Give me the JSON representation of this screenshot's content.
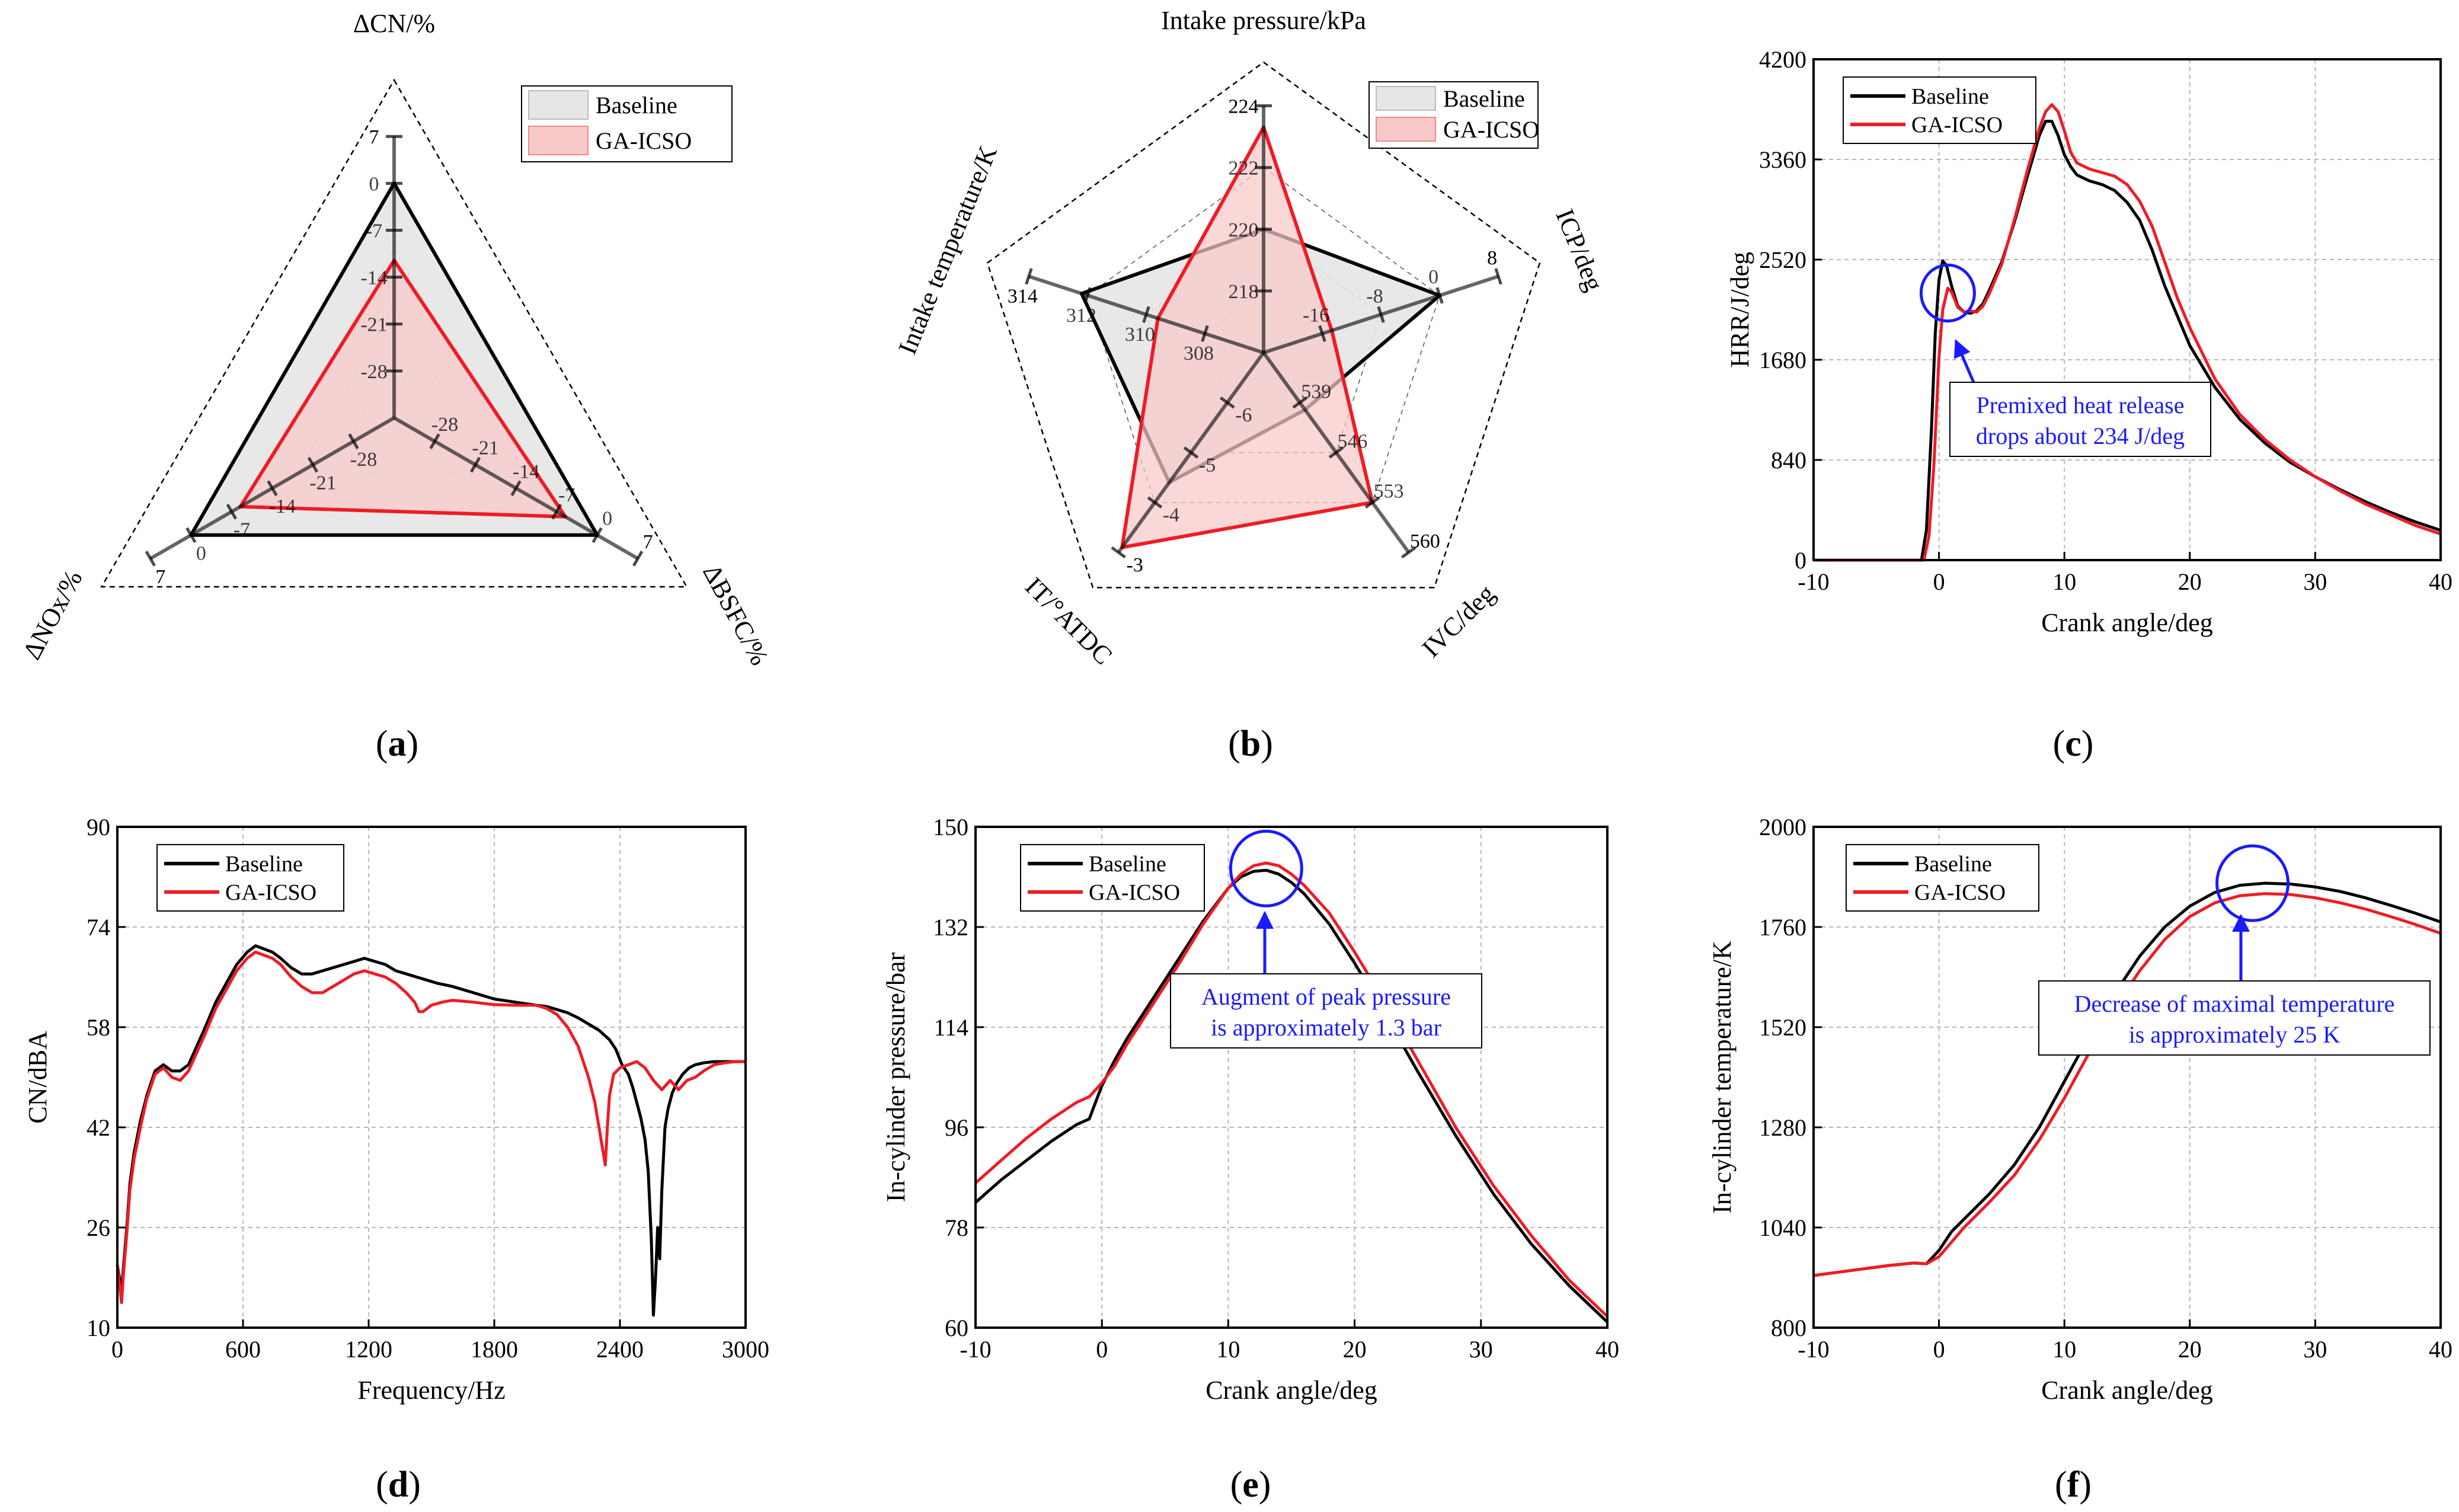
{
  "colors": {
    "baseline": "#000000",
    "ga": "#ee1c25",
    "annot": "#1a1aff",
    "radar_base_fill": "#e6e6e6",
    "radar_ga_fill": "#f8c9c9"
  },
  "panels": {
    "a": {
      "label": "(a)",
      "letter": "a"
    },
    "b": {
      "label": "(b)",
      "letter": "b"
    },
    "c": {
      "label": "(c)",
      "letter": "c"
    },
    "d": {
      "label": "(d)",
      "letter": "d"
    },
    "e": {
      "label": "(e)",
      "letter": "e"
    },
    "f": {
      "label": "(f)",
      "letter": "f"
    }
  },
  "chart_data": [
    {
      "id": "a",
      "type": "radar",
      "legend": [
        "Baseline",
        "GA-ICSO"
      ],
      "axes": [
        {
          "name": "ΔCN/%",
          "min": -35,
          "max": 7,
          "ticks": [
            "7",
            "0",
            "-7",
            "-14",
            "-21",
            "-28"
          ],
          "tick_values": [
            7,
            0,
            -7,
            -14,
            -21,
            -28
          ]
        },
        {
          "name": "ΔBSFC/%",
          "min": -35,
          "max": 7,
          "ticks": [
            "7",
            "0",
            "-7",
            "-14",
            "-21",
            "-28"
          ],
          "tick_values": [
            7,
            0,
            -7,
            -14,
            -21,
            -28
          ]
        },
        {
          "name": "ΔNOx/%",
          "min": -35,
          "max": 7,
          "ticks": [
            "7",
            "0",
            "-7",
            "-14",
            "-21",
            "-28"
          ],
          "tick_values": [
            7,
            0,
            -7,
            -14,
            -21,
            -28
          ]
        }
      ],
      "series": [
        {
          "name": "Baseline",
          "values": [
            0,
            0,
            0
          ]
        },
        {
          "name": "GA-ICSO",
          "values": [
            -11.5,
            -5.5,
            -8.5
          ]
        }
      ]
    },
    {
      "id": "b",
      "type": "radar",
      "legend": [
        "Baseline",
        "GA-ICSO"
      ],
      "axes": [
        {
          "name": "Intake pressure/kPa",
          "min": 216,
          "max": 224,
          "ticks": [
            "224",
            "222",
            "220",
            "218"
          ],
          "tick_values": [
            224,
            222,
            220,
            218
          ]
        },
        {
          "name": "ICP/deg",
          "min": -24,
          "max": 8,
          "ticks": [
            "8",
            "0",
            "-8",
            "-16"
          ],
          "tick_values": [
            8,
            0,
            -8,
            -16
          ]
        },
        {
          "name": "IVC/deg",
          "min": 532,
          "max": 560,
          "ticks": [
            "560",
            "553",
            "546",
            "539"
          ],
          "tick_values": [
            560,
            553,
            546,
            539
          ]
        },
        {
          "name": "IT/°ATDC",
          "min": -7,
          "max": -3,
          "ticks": [
            "-3",
            "-4",
            "-5",
            "-6"
          ],
          "tick_values": [
            -3,
            -4,
            -5,
            -6
          ]
        },
        {
          "name": "Intake temperature/K",
          "min": 306,
          "max": 314,
          "ticks": [
            "314",
            "312",
            "310",
            "308"
          ],
          "tick_values": [
            314,
            312,
            310,
            308
          ]
        }
      ],
      "series": [
        {
          "name": "Baseline",
          "values": [
            220.0,
            0.0,
            540.0,
            -4.4,
            312.2
          ]
        },
        {
          "name": "GA-ICSO",
          "values": [
            223.3,
            -14.7,
            553.0,
            -3.1,
            309.6
          ]
        }
      ]
    },
    {
      "id": "c",
      "type": "line",
      "xlabel": "Crank angle/deg",
      "ylabel": "HRR/J/deg",
      "xlim": [
        -10,
        40
      ],
      "ylim": [
        0,
        4200
      ],
      "xticks": [
        -10,
        0,
        10,
        20,
        30,
        40
      ],
      "yticks": [
        0,
        840,
        1680,
        2520,
        3360,
        4200
      ],
      "legend": [
        "Baseline",
        "GA-ICSO"
      ],
      "annotation": {
        "lines": [
          "Premixed heat release",
          "drops about 234 J/deg"
        ],
        "circle_at": [
          0.7,
          2240
        ]
      },
      "series": [
        {
          "name": "Baseline",
          "x": [
            -10,
            -2,
            -1.4,
            -1,
            -0.6,
            -0.3,
            0,
            0.3,
            0.6,
            1,
            1.5,
            2,
            2.5,
            3,
            3.5,
            4,
            5,
            6,
            7,
            8,
            8.5,
            9,
            9.5,
            10,
            10.5,
            11,
            12,
            13,
            14,
            15,
            16,
            17,
            18,
            19,
            20,
            22,
            24,
            26,
            28,
            30,
            32,
            34,
            36,
            38,
            40
          ],
          "y": [
            0,
            0,
            0,
            250,
            1100,
            1900,
            2350,
            2510,
            2470,
            2300,
            2130,
            2080,
            2070,
            2090,
            2150,
            2260,
            2500,
            2830,
            3200,
            3560,
            3680,
            3680,
            3560,
            3400,
            3300,
            3230,
            3180,
            3150,
            3100,
            3000,
            2850,
            2600,
            2300,
            2050,
            1800,
            1450,
            1180,
            980,
            820,
            700,
            590,
            490,
            400,
            320,
            250
          ]
        },
        {
          "name": "GA-ICSO",
          "x": [
            -10,
            -1.2,
            -0.8,
            -0.4,
            0,
            0.3,
            0.7,
            1,
            1.5,
            2,
            2.5,
            3,
            3.5,
            4,
            5,
            6,
            7,
            8,
            8.5,
            9,
            9.5,
            10,
            10.5,
            11,
            12,
            13,
            14,
            15,
            16,
            17,
            18,
            19,
            20,
            22,
            24,
            26,
            28,
            30,
            32,
            34,
            36,
            38,
            40
          ],
          "y": [
            0,
            0,
            200,
            800,
            1700,
            2100,
            2280,
            2250,
            2120,
            2080,
            2090,
            2080,
            2130,
            2230,
            2480,
            2850,
            3250,
            3620,
            3760,
            3820,
            3760,
            3600,
            3420,
            3330,
            3280,
            3250,
            3220,
            3150,
            3010,
            2800,
            2500,
            2200,
            1950,
            1520,
            1220,
            1010,
            840,
            700,
            580,
            470,
            380,
            290,
            220
          ]
        }
      ]
    },
    {
      "id": "d",
      "type": "line",
      "xlabel": "Frequency/Hz",
      "ylabel": "CN/dBA",
      "xlim": [
        0,
        3000
      ],
      "ylim": [
        10,
        90
      ],
      "xticks": [
        0,
        600,
        1200,
        1800,
        2400,
        3000
      ],
      "yticks": [
        10,
        26,
        42,
        58,
        74,
        90
      ],
      "legend": [
        "Baseline",
        "GA-ICSO"
      ],
      "series": [
        {
          "name": "Baseline",
          "x": [
            0,
            10,
            20,
            30,
            45,
            60,
            80,
            110,
            140,
            180,
            220,
            260,
            300,
            340,
            380,
            420,
            470,
            520,
            570,
            620,
            660,
            700,
            740,
            780,
            830,
            880,
            930,
            980,
            1030,
            1080,
            1130,
            1180,
            1230,
            1280,
            1330,
            1380,
            1430,
            1480,
            1530,
            1600,
            1700,
            1800,
            1900,
            2000,
            2050,
            2100,
            2150,
            2200,
            2250,
            2300,
            2350,
            2380,
            2410,
            2440,
            2460,
            2480,
            2500,
            2520,
            2535,
            2550,
            2560,
            2570,
            2580,
            2590,
            2600,
            2615,
            2630,
            2650,
            2670,
            2700,
            2730,
            2760,
            2800,
            2850,
            2900,
            2950,
            3000
          ],
          "y": [
            20,
            18,
            16,
            20,
            26,
            33,
            38,
            43,
            47,
            51,
            52,
            51,
            51,
            52,
            55,
            58,
            62,
            65,
            68,
            70,
            71,
            70.5,
            70,
            69,
            67.5,
            66.5,
            66.5,
            67,
            67.5,
            68,
            68.5,
            69,
            68.5,
            68,
            67,
            66.5,
            66,
            65.5,
            65,
            64.5,
            63.5,
            62.5,
            62,
            61.5,
            61.3,
            60.8,
            60.3,
            59.5,
            58.5,
            57.5,
            56,
            54.5,
            52,
            50.5,
            48.5,
            46,
            43.5,
            40,
            35,
            24,
            12,
            18,
            26,
            21,
            32,
            42,
            45,
            47.5,
            49,
            50.5,
            51.5,
            52,
            52.3,
            52.5,
            52.5,
            52.5,
            52.5
          ]
        },
        {
          "name": "GA-ICSO",
          "x": [
            0,
            10,
            20,
            30,
            45,
            60,
            80,
            110,
            140,
            180,
            220,
            260,
            300,
            340,
            380,
            420,
            470,
            520,
            570,
            620,
            660,
            700,
            740,
            780,
            830,
            880,
            930,
            980,
            1030,
            1080,
            1130,
            1180,
            1230,
            1280,
            1330,
            1380,
            1420,
            1440,
            1460,
            1500,
            1550,
            1600,
            1700,
            1800,
            1900,
            2000,
            2050,
            2100,
            2150,
            2200,
            2250,
            2280,
            2300,
            2320,
            2330,
            2340,
            2350,
            2370,
            2400,
            2440,
            2480,
            2520,
            2560,
            2600,
            2640,
            2680,
            2720,
            2760,
            2800,
            2850,
            2900,
            2950,
            3000
          ],
          "y": [
            20,
            17,
            14,
            19,
            25,
            32,
            37,
            42,
            46.5,
            50.5,
            51.5,
            50,
            49.5,
            51,
            54,
            57,
            61,
            64,
            67,
            69,
            70,
            69.5,
            69,
            68,
            66,
            64.5,
            63.5,
            63.5,
            64.5,
            65.5,
            66.5,
            67,
            66.5,
            66,
            65,
            63.5,
            62,
            60.5,
            60.5,
            61.5,
            62,
            62.3,
            62,
            61.6,
            61.5,
            61.5,
            61,
            60,
            58,
            55,
            50,
            46,
            42,
            38,
            36,
            42,
            47,
            50.5,
            51.5,
            52,
            52.5,
            51.5,
            49.5,
            48,
            49.5,
            48,
            49.5,
            50,
            51,
            52,
            52.3,
            52.5,
            52.5
          ]
        }
      ]
    },
    {
      "id": "e",
      "type": "line",
      "xlabel": "Crank angle/deg",
      "ylabel": "In-cylinder pressure/bar",
      "xlim": [
        -10,
        40
      ],
      "ylim": [
        60,
        150
      ],
      "xticks": [
        -10,
        0,
        10,
        20,
        30,
        40
      ],
      "yticks": [
        60,
        78,
        96,
        114,
        132,
        150
      ],
      "legend": [
        "Baseline",
        "GA-ICSO"
      ],
      "annotation": {
        "lines": [
          "Augment of peak pressure",
          "is approximately 1.3 bar"
        ],
        "circle_at": [
          13,
          142.5
        ]
      },
      "series": [
        {
          "name": "Baseline",
          "x": [
            -10,
            -8,
            -6,
            -4,
            -2,
            -1,
            0,
            1,
            2,
            4,
            6,
            8,
            10,
            11,
            12,
            13,
            14,
            15,
            16,
            18,
            20,
            22,
            25,
            28,
            31,
            34,
            37,
            40
          ],
          "y": [
            82.5,
            86.5,
            90,
            93.5,
            96.5,
            97.5,
            103.5,
            108,
            112,
            119,
            126,
            133,
            139,
            141,
            142,
            142.2,
            141.5,
            140,
            138,
            132.5,
            125.5,
            118,
            106,
            94.5,
            84,
            75,
            67.5,
            61
          ]
        },
        {
          "name": "GA-ICSO",
          "x": [
            -10,
            -8,
            -6,
            -4,
            -2,
            -1,
            0,
            1,
            2,
            4,
            6,
            8,
            10,
            11,
            12,
            13,
            14,
            15,
            16,
            18,
            20,
            22,
            25,
            28,
            31,
            34,
            37,
            40
          ],
          "y": [
            86,
            90,
            94,
            97.5,
            100.5,
            101.5,
            104,
            107,
            111,
            118,
            125,
            132.5,
            139,
            141.5,
            143,
            143.5,
            143,
            141.5,
            139.5,
            134.5,
            127.5,
            120,
            108,
            96,
            85.5,
            76.5,
            68.5,
            62
          ]
        }
      ]
    },
    {
      "id": "f",
      "type": "line",
      "xlabel": "Crank angle/deg",
      "ylabel": "In-cylinder temperature/K",
      "xlim": [
        -10,
        40
      ],
      "ylim": [
        800,
        2000
      ],
      "xticks": [
        -10,
        0,
        10,
        20,
        30,
        40
      ],
      "yticks": [
        800,
        1040,
        1280,
        1520,
        1760,
        2000
      ],
      "legend": [
        "Baseline",
        "GA-ICSO"
      ],
      "annotation": {
        "lines": [
          "Decrease of maximal temperature",
          "is approximately 25 K"
        ],
        "circle_at": [
          25,
          1865
        ]
      },
      "series": [
        {
          "name": "Baseline",
          "x": [
            -10,
            -8,
            -6,
            -4,
            -2,
            -1,
            0,
            1,
            2,
            4,
            6,
            8,
            10,
            12,
            14,
            16,
            18,
            20,
            22,
            24,
            26,
            28,
            30,
            32,
            34,
            36,
            38,
            40
          ],
          "y": [
            925,
            933,
            941,
            949,
            955,
            953,
            985,
            1030,
            1060,
            1120,
            1190,
            1280,
            1390,
            1500,
            1600,
            1690,
            1760,
            1810,
            1843,
            1860,
            1865,
            1863,
            1856,
            1845,
            1830,
            1812,
            1793,
            1772
          ]
        },
        {
          "name": "GA-ICSO",
          "x": [
            -10,
            -8,
            -6,
            -4,
            -2,
            -1,
            0,
            1,
            2,
            4,
            6,
            8,
            10,
            12,
            14,
            16,
            18,
            20,
            22,
            24,
            26,
            28,
            30,
            32,
            34,
            36,
            38,
            40
          ],
          "y": [
            925,
            933,
            941,
            949,
            955,
            953,
            970,
            1005,
            1040,
            1100,
            1165,
            1250,
            1350,
            1460,
            1565,
            1655,
            1730,
            1785,
            1818,
            1835,
            1840,
            1838,
            1830,
            1818,
            1803,
            1785,
            1766,
            1745
          ]
        }
      ]
    }
  ]
}
